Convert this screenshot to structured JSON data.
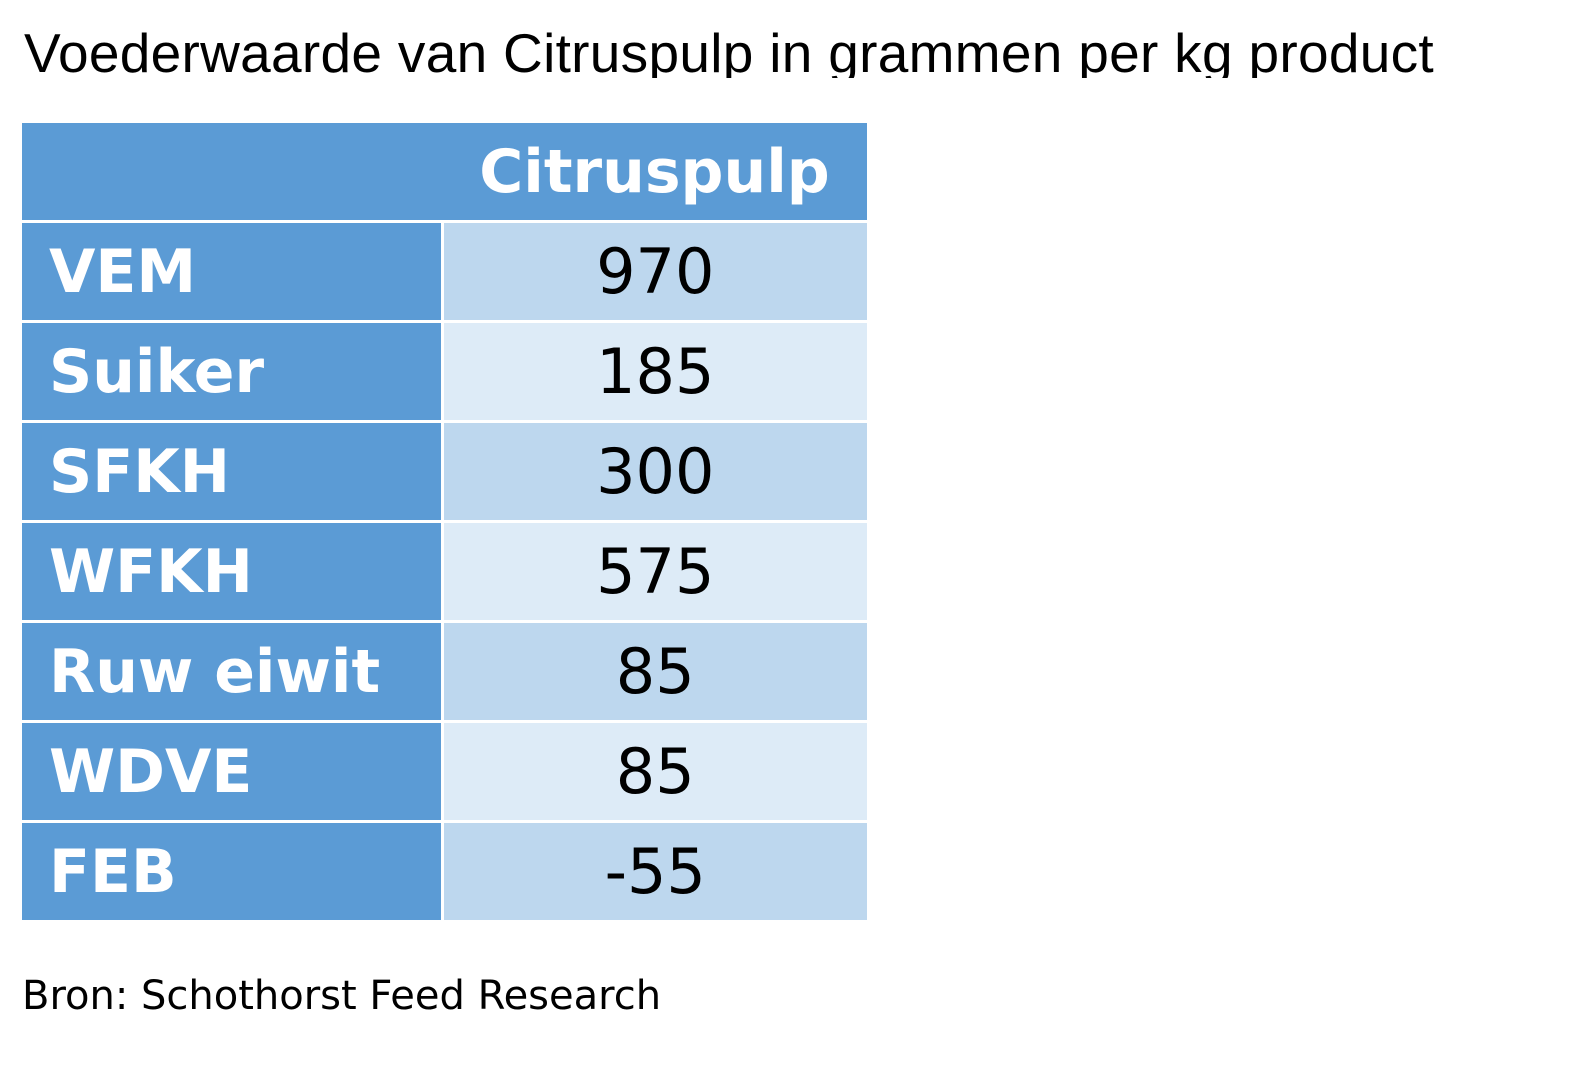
{
  "title": "Voederwaarde van Citruspulp in grammen per kg product",
  "source": "Bron: Schothorst Feed Research",
  "colors": {
    "header_blue": "#5b9bd5",
    "row_light_a": "#bdd7ee",
    "row_light_b": "#ddebf7"
  },
  "chart_data": {
    "type": "table",
    "title": "Voederwaarde van Citruspulp in grammen per kg product",
    "columns": [
      "",
      "Citruspulp"
    ],
    "rows": [
      {
        "label": "VEM",
        "value": "970"
      },
      {
        "label": "Suiker",
        "value": "185"
      },
      {
        "label": "SFKH",
        "value": "300"
      },
      {
        "label": "WFKH",
        "value": "575"
      },
      {
        "label": "Ruw eiwit",
        "value": "85"
      },
      {
        "label": "WDVE",
        "value": "85"
      },
      {
        "label": "FEB",
        "value": "-55"
      }
    ],
    "source": "Bron: Schothorst Feed Research"
  }
}
